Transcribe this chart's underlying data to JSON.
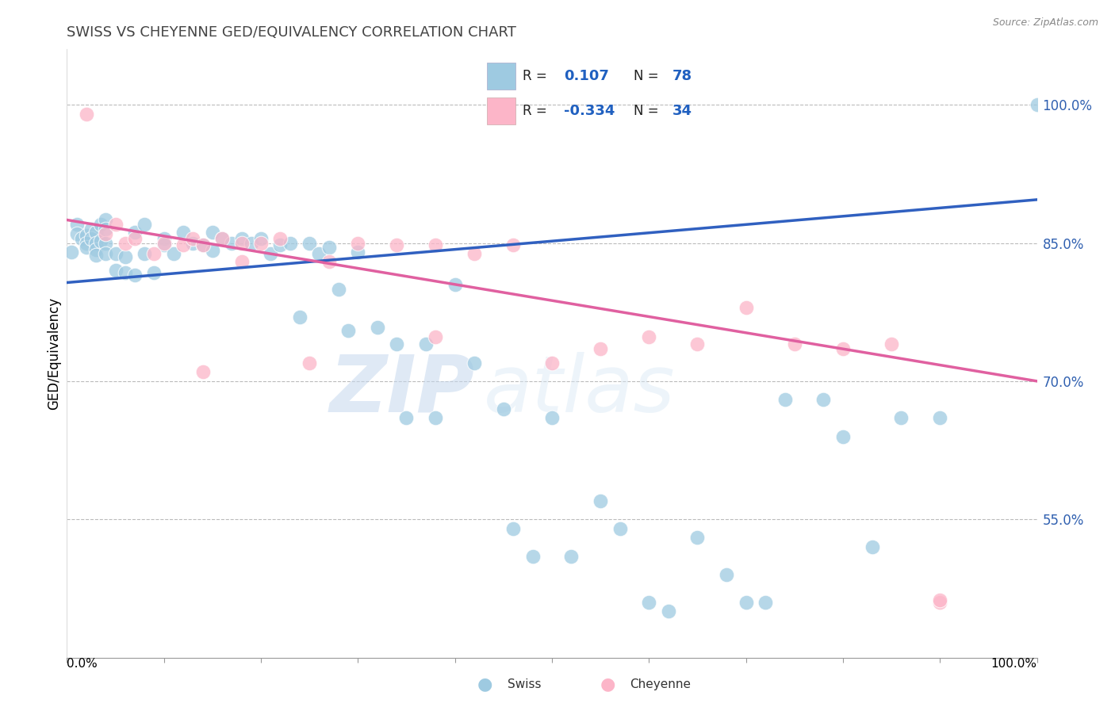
{
  "title": "SWISS VS CHEYENNE GED/EQUIVALENCY CORRELATION CHART",
  "source": "Source: ZipAtlas.com",
  "ylabel": "GED/Equivalency",
  "ytick_labels": [
    "100.0%",
    "85.0%",
    "70.0%",
    "55.0%"
  ],
  "ytick_values": [
    1.0,
    0.85,
    0.7,
    0.55
  ],
  "xmin": 0.0,
  "xmax": 1.0,
  "ymin": 0.4,
  "ymax": 1.06,
  "blue_color": "#9ecae1",
  "pink_color": "#fcb5c8",
  "blue_line_color": "#3060c0",
  "pink_line_color": "#e060a0",
  "watermark_zip": "ZIP",
  "watermark_atlas": "atlas",
  "blue_line_x0": 0.0,
  "blue_line_y0": 0.807,
  "blue_line_x1": 1.0,
  "blue_line_y1": 0.897,
  "pink_line_x0": 0.0,
  "pink_line_y0": 0.875,
  "pink_line_x1": 1.0,
  "pink_line_y1": 0.7,
  "swiss_x": [
    0.005,
    0.01,
    0.01,
    0.015,
    0.02,
    0.02,
    0.02,
    0.025,
    0.025,
    0.03,
    0.03,
    0.03,
    0.03,
    0.035,
    0.035,
    0.04,
    0.04,
    0.04,
    0.04,
    0.05,
    0.05,
    0.06,
    0.06,
    0.07,
    0.07,
    0.08,
    0.08,
    0.09,
    0.1,
    0.1,
    0.11,
    0.12,
    0.13,
    0.14,
    0.15,
    0.15,
    0.16,
    0.17,
    0.18,
    0.19,
    0.2,
    0.21,
    0.22,
    0.23,
    0.24,
    0.25,
    0.26,
    0.27,
    0.28,
    0.29,
    0.3,
    0.32,
    0.34,
    0.35,
    0.37,
    0.38,
    0.4,
    0.42,
    0.45,
    0.46,
    0.48,
    0.5,
    0.52,
    0.55,
    0.57,
    0.6,
    0.62,
    0.65,
    0.68,
    0.7,
    0.72,
    0.74,
    0.78,
    0.8,
    0.83,
    0.86,
    0.9,
    1.0
  ],
  "swiss_y": [
    0.84,
    0.87,
    0.86,
    0.855,
    0.858,
    0.85,
    0.845,
    0.865,
    0.855,
    0.862,
    0.85,
    0.843,
    0.837,
    0.87,
    0.852,
    0.875,
    0.865,
    0.85,
    0.838,
    0.838,
    0.82,
    0.835,
    0.818,
    0.862,
    0.815,
    0.87,
    0.838,
    0.818,
    0.855,
    0.848,
    0.838,
    0.862,
    0.85,
    0.848,
    0.862,
    0.842,
    0.855,
    0.85,
    0.855,
    0.85,
    0.855,
    0.838,
    0.848,
    0.85,
    0.77,
    0.85,
    0.838,
    0.845,
    0.8,
    0.755,
    0.84,
    0.758,
    0.74,
    0.66,
    0.74,
    0.66,
    0.805,
    0.72,
    0.67,
    0.54,
    0.51,
    0.66,
    0.51,
    0.57,
    0.54,
    0.46,
    0.45,
    0.53,
    0.49,
    0.46,
    0.46,
    0.68,
    0.68,
    0.64,
    0.52,
    0.66,
    0.66,
    1.0
  ],
  "cheyenne_x": [
    0.02,
    0.04,
    0.05,
    0.06,
    0.07,
    0.09,
    0.1,
    0.12,
    0.13,
    0.14,
    0.16,
    0.18,
    0.2,
    0.22,
    0.25,
    0.27,
    0.3,
    0.34,
    0.38,
    0.42,
    0.46,
    0.5,
    0.55,
    0.6,
    0.65,
    0.7,
    0.75,
    0.8,
    0.85,
    0.9,
    0.14,
    0.18,
    0.38,
    0.9
  ],
  "cheyenne_y": [
    0.99,
    0.86,
    0.87,
    0.85,
    0.855,
    0.838,
    0.85,
    0.848,
    0.855,
    0.848,
    0.855,
    0.85,
    0.85,
    0.855,
    0.72,
    0.83,
    0.85,
    0.848,
    0.848,
    0.838,
    0.848,
    0.72,
    0.735,
    0.748,
    0.74,
    0.78,
    0.74,
    0.735,
    0.74,
    0.46,
    0.71,
    0.83,
    0.748,
    0.462
  ]
}
